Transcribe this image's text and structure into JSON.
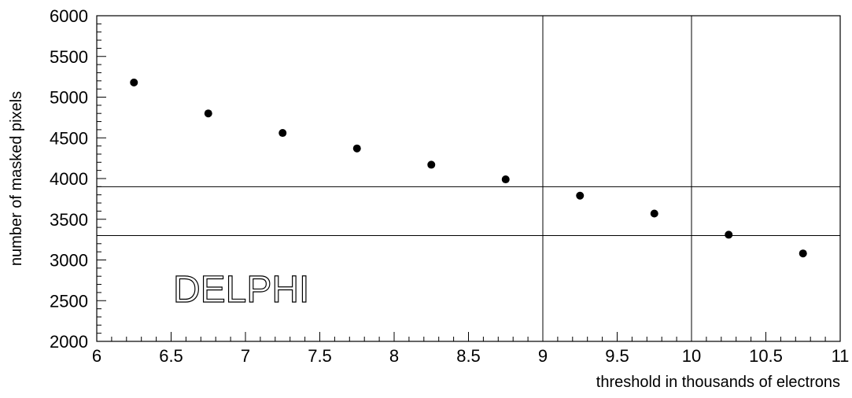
{
  "chart_data": {
    "type": "scatter",
    "x_label": "threshold in thousands of electrons",
    "y_label": "number of masked pixels",
    "annotation": "DELPHI",
    "x": [
      6.25,
      6.75,
      7.25,
      7.75,
      8.25,
      8.75,
      9.25,
      9.75,
      10.25,
      10.75
    ],
    "values": [
      5180,
      4800,
      4560,
      4370,
      4170,
      3990,
      3790,
      3570,
      3310,
      3080
    ],
    "color": "#000000",
    "xlim": [
      6,
      11
    ],
    "ylim": [
      2000,
      6000
    ],
    "xticks": [
      6,
      6.5,
      7,
      7.5,
      8,
      8.5,
      9,
      9.5,
      10,
      10.5,
      11
    ],
    "yticks": [
      2000,
      2500,
      3000,
      3500,
      4000,
      4500,
      5000,
      5500,
      6000
    ],
    "hlines": [
      3900,
      3300
    ],
    "vlines": [
      9,
      10
    ]
  }
}
